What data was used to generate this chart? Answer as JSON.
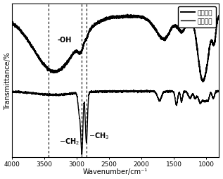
{
  "xlabel": "Wavenumber/cm⁻¹",
  "ylabel": "Transmittance/%",
  "xlim": [
    4000,
    800
  ],
  "legend_labels": [
    "亲水碳点",
    "疏水碳点"
  ],
  "vlines": [
    3430,
    2920,
    2850
  ],
  "background_color": "#ffffff",
  "line_color": "#000000",
  "fontsize_label": 7,
  "fontsize_tick": 6.5,
  "fontsize_legend": 6.5,
  "fontsize_annot": 7
}
